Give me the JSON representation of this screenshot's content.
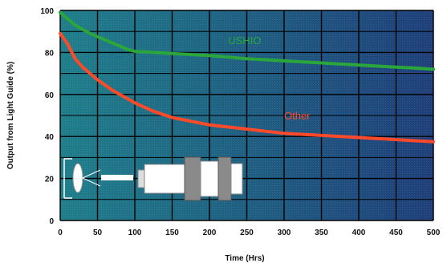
{
  "chart_data": {
    "type": "line",
    "xlabel": "Time (Hrs)",
    "ylabel": "Output from Light Guide (%)",
    "xlim": [
      0,
      500
    ],
    "ylim": [
      0,
      100
    ],
    "x_ticks": [
      "0",
      "50",
      "100",
      "150",
      "200",
      "250",
      "300",
      "350",
      "400",
      "450",
      "500"
    ],
    "y_ticks": [
      "0",
      "20",
      "40",
      "60",
      "80",
      "100"
    ],
    "grid": true,
    "background_gradient": [
      "#1f7e8a",
      "#1f3f7a"
    ],
    "series": [
      {
        "name": "USHIO",
        "color": "#2aa63a",
        "label_at": [
          225,
          84
        ],
        "x": [
          0,
          10,
          20,
          30,
          40,
          50,
          60,
          70,
          80,
          90,
          100,
          125,
          150,
          200,
          250,
          300,
          350,
          400,
          450,
          480,
          500
        ],
        "y": [
          99,
          96,
          93,
          91,
          89,
          87.5,
          86,
          84.5,
          83,
          81.5,
          80.5,
          80,
          79.5,
          78.5,
          77,
          76,
          75,
          74,
          73,
          72.5,
          72
        ]
      },
      {
        "name": "Other",
        "color": "#ff4a2a",
        "label_at": [
          300,
          48
        ],
        "x": [
          0,
          10,
          20,
          30,
          40,
          50,
          60,
          70,
          80,
          90,
          100,
          125,
          150,
          200,
          250,
          300,
          350,
          400,
          450,
          500
        ],
        "y": [
          89,
          84,
          77,
          73,
          70,
          67,
          64.5,
          62,
          60,
          58,
          56,
          52,
          49,
          45.5,
          43.5,
          41.5,
          40.5,
          39.5,
          38.5,
          37.5
        ]
      }
    ],
    "inset_icon": "light-guide-lamp-icon"
  }
}
